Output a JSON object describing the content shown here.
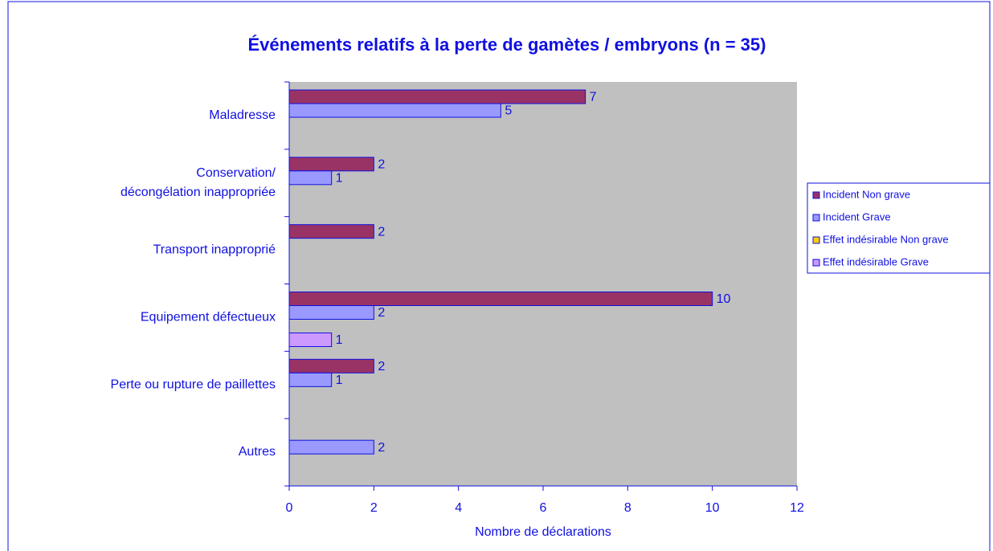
{
  "chart_data": {
    "type": "hbar",
    "title": "Événements relatifs à la perte de gamètes / embryons (n = 35)",
    "categories": [
      "Maladresse",
      "Conservation/\ndécongélation inappropriée",
      "Transport inapproprié",
      "Equipement défectueux",
      "Perte ou rupture de paillettes",
      "Autres"
    ],
    "series": [
      {
        "name": "Incident Non grave",
        "color": "#993366",
        "values": [
          7,
          2,
          2,
          10,
          2,
          null
        ]
      },
      {
        "name": "Incident Grave",
        "color": "#9999ff",
        "values": [
          5,
          1,
          null,
          2,
          1,
          2
        ]
      },
      {
        "name": "Effet indésirable Non grave",
        "color": "#ffcc00",
        "values": [
          null,
          null,
          null,
          null,
          null,
          null
        ]
      },
      {
        "name": "Effet indésirable Grave",
        "color": "#cc99ff",
        "values": [
          null,
          null,
          null,
          1,
          null,
          null
        ]
      }
    ],
    "x_label": "Nombre de déclarations",
    "xlim": [
      0,
      12
    ],
    "xticks": [
      0,
      2,
      4,
      6,
      8,
      10,
      12
    ],
    "legend": "right"
  }
}
